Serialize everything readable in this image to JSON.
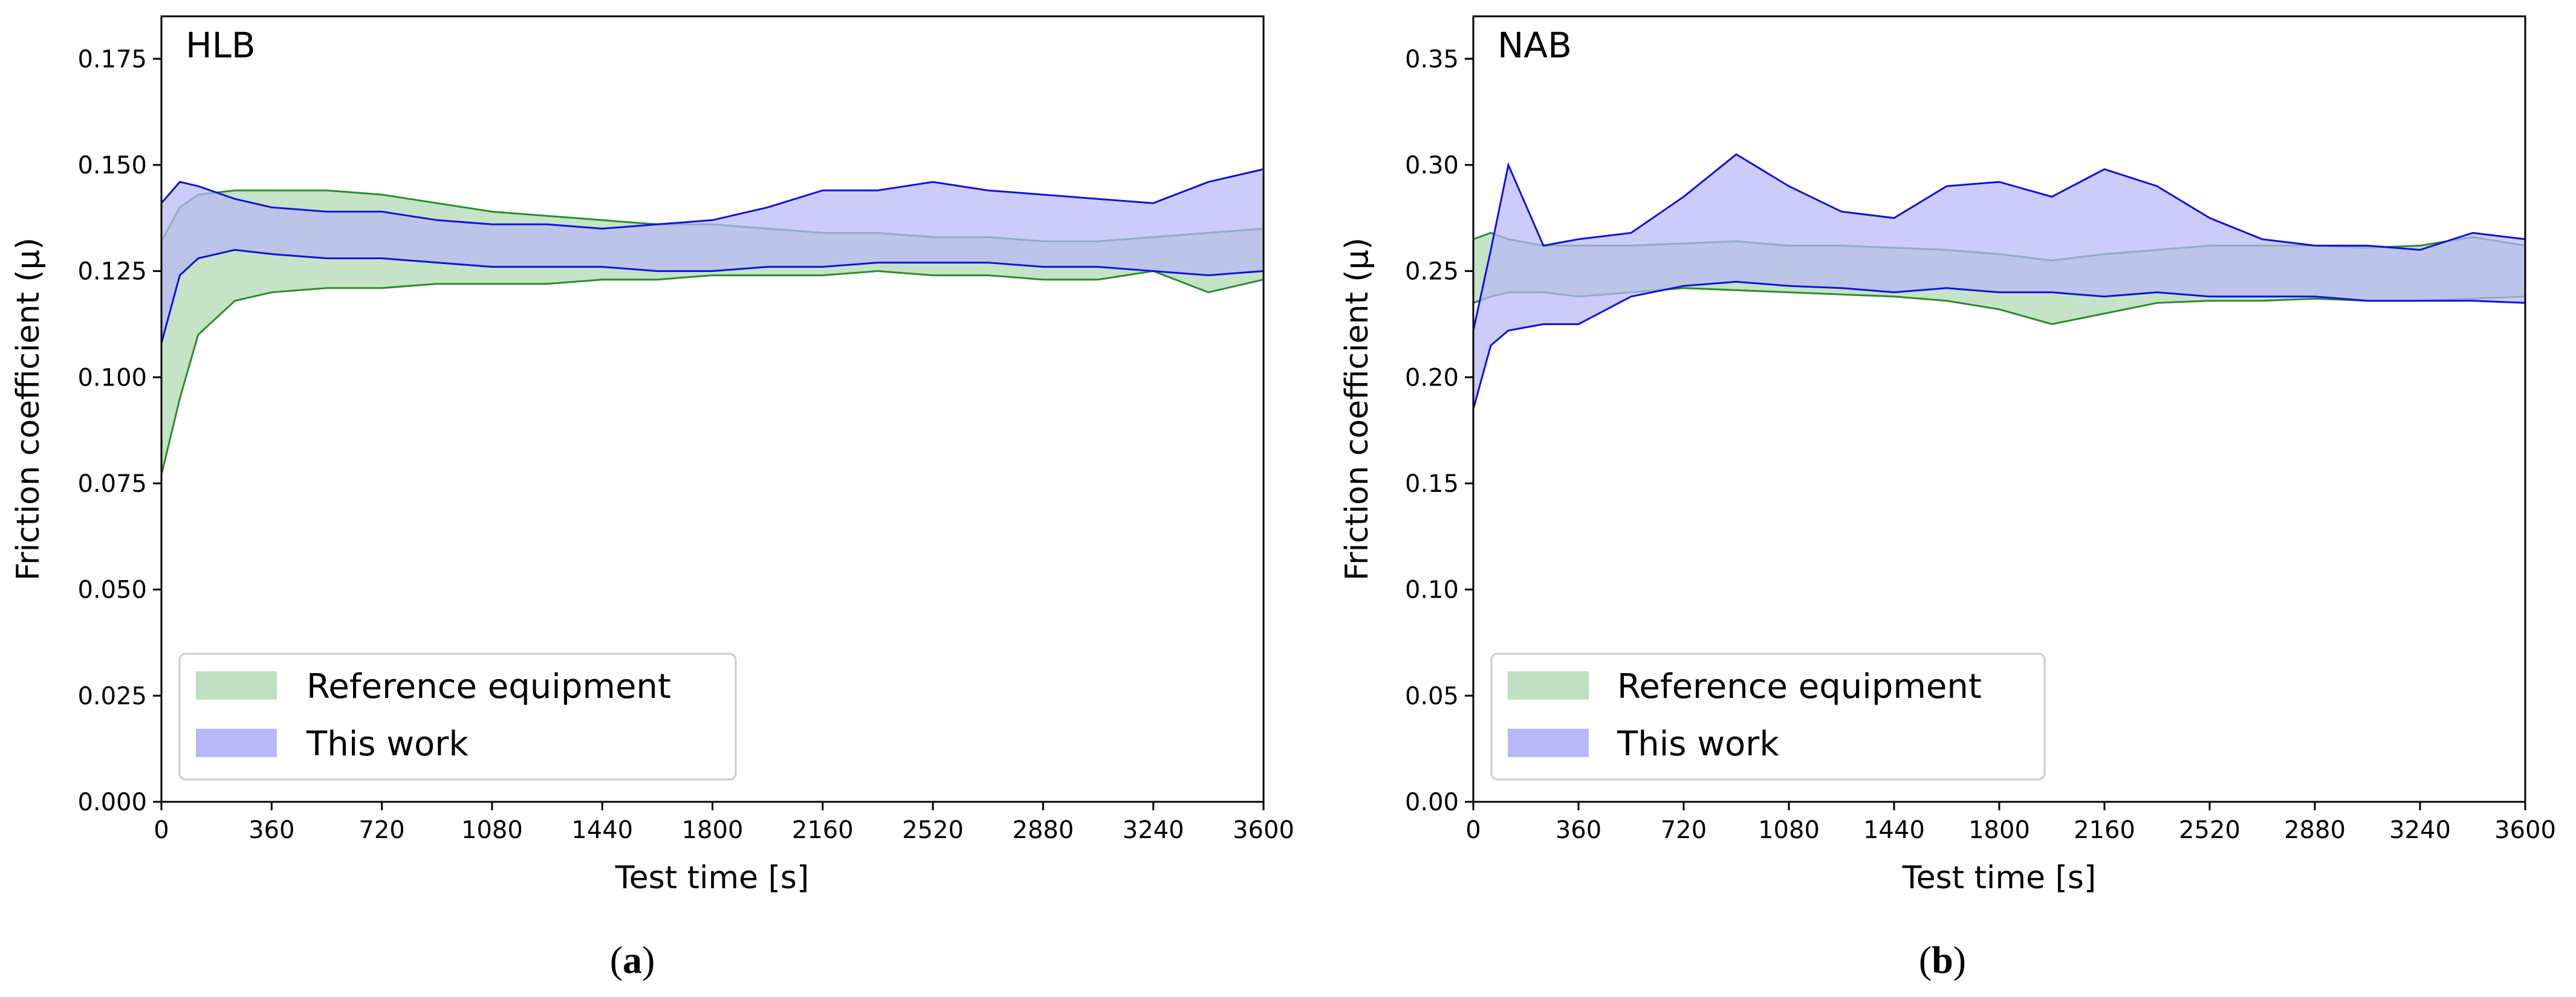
{
  "colors": {
    "reference_fill": "#bfe0c0",
    "reference_edge": "#2e8b2e",
    "this_work_fill": "#b8b8f8",
    "this_work_edge": "#1010e0"
  },
  "chart_data": [
    {
      "type": "area",
      "title": "HLB",
      "caption": {
        "open": "(",
        "letter": "a",
        "close": ")"
      },
      "xlabel": "Test time [s]",
      "ylabel": "Friction coefficient (µ)",
      "xlim": [
        0,
        3600
      ],
      "ylim": [
        0,
        0.185
      ],
      "xticks": [
        "0",
        "360",
        "720",
        "1080",
        "1440",
        "1800",
        "2160",
        "2520",
        "2880",
        "3240",
        "3600"
      ],
      "yticks": [
        "0.000",
        "0.025",
        "0.050",
        "0.075",
        "0.100",
        "0.125",
        "0.150",
        "0.175"
      ],
      "legend_placement": "lower-left",
      "x": [
        0,
        60,
        120,
        240,
        360,
        540,
        720,
        900,
        1080,
        1260,
        1440,
        1620,
        1800,
        1980,
        2160,
        2340,
        2520,
        2700,
        2880,
        3060,
        3240,
        3420,
        3600
      ],
      "series": [
        {
          "name": "Reference equipment",
          "lower": [
            0.077,
            0.095,
            0.11,
            0.118,
            0.12,
            0.121,
            0.121,
            0.122,
            0.122,
            0.122,
            0.123,
            0.123,
            0.124,
            0.124,
            0.124,
            0.125,
            0.124,
            0.124,
            0.123,
            0.123,
            0.125,
            0.12,
            0.123
          ],
          "upper": [
            0.132,
            0.14,
            0.143,
            0.144,
            0.144,
            0.144,
            0.143,
            0.141,
            0.139,
            0.138,
            0.137,
            0.136,
            0.136,
            0.135,
            0.134,
            0.134,
            0.133,
            0.133,
            0.132,
            0.132,
            0.133,
            0.134,
            0.135
          ]
        },
        {
          "name": "This work",
          "lower": [
            0.108,
            0.124,
            0.128,
            0.13,
            0.129,
            0.128,
            0.128,
            0.127,
            0.126,
            0.126,
            0.126,
            0.125,
            0.125,
            0.126,
            0.126,
            0.127,
            0.127,
            0.127,
            0.126,
            0.126,
            0.125,
            0.124,
            0.125
          ],
          "upper": [
            0.141,
            0.146,
            0.145,
            0.142,
            0.14,
            0.139,
            0.139,
            0.137,
            0.136,
            0.136,
            0.135,
            0.136,
            0.137,
            0.14,
            0.144,
            0.144,
            0.146,
            0.144,
            0.143,
            0.142,
            0.141,
            0.146,
            0.149
          ]
        }
      ]
    },
    {
      "type": "area",
      "title": "NAB",
      "caption": {
        "open": "(",
        "letter": "b",
        "close": ")"
      },
      "xlabel": "Test time [s]",
      "ylabel": "Friction coefficient (µ)",
      "xlim": [
        0,
        3600
      ],
      "ylim": [
        0,
        0.37
      ],
      "xticks": [
        "0",
        "360",
        "720",
        "1080",
        "1440",
        "1800",
        "2160",
        "2520",
        "2880",
        "3240",
        "3600"
      ],
      "yticks": [
        "0.00",
        "0.05",
        "0.10",
        "0.15",
        "0.20",
        "0.25",
        "0.30",
        "0.35"
      ],
      "legend_placement": "lower-left",
      "x": [
        0,
        60,
        120,
        240,
        360,
        540,
        720,
        900,
        1080,
        1260,
        1440,
        1620,
        1800,
        1980,
        2160,
        2340,
        2520,
        2700,
        2880,
        3060,
        3240,
        3420,
        3600
      ],
      "series": [
        {
          "name": "Reference equipment",
          "lower": [
            0.235,
            0.238,
            0.24,
            0.24,
            0.238,
            0.24,
            0.242,
            0.241,
            0.24,
            0.239,
            0.238,
            0.236,
            0.232,
            0.225,
            0.23,
            0.235,
            0.236,
            0.236,
            0.237,
            0.236,
            0.236,
            0.237,
            0.238
          ],
          "upper": [
            0.265,
            0.268,
            0.265,
            0.262,
            0.262,
            0.262,
            0.263,
            0.264,
            0.262,
            0.262,
            0.261,
            0.26,
            0.258,
            0.255,
            0.258,
            0.26,
            0.262,
            0.262,
            0.262,
            0.261,
            0.262,
            0.266,
            0.262
          ]
        },
        {
          "name": "This work",
          "lower": [
            0.185,
            0.215,
            0.222,
            0.225,
            0.225,
            0.238,
            0.243,
            0.245,
            0.243,
            0.242,
            0.24,
            0.242,
            0.24,
            0.24,
            0.238,
            0.24,
            0.238,
            0.238,
            0.238,
            0.236,
            0.236,
            0.236,
            0.235
          ],
          "upper": [
            0.222,
            0.26,
            0.3,
            0.262,
            0.265,
            0.268,
            0.285,
            0.305,
            0.29,
            0.278,
            0.275,
            0.29,
            0.292,
            0.285,
            0.298,
            0.29,
            0.275,
            0.265,
            0.262,
            0.262,
            0.26,
            0.268,
            0.265
          ]
        }
      ]
    }
  ]
}
